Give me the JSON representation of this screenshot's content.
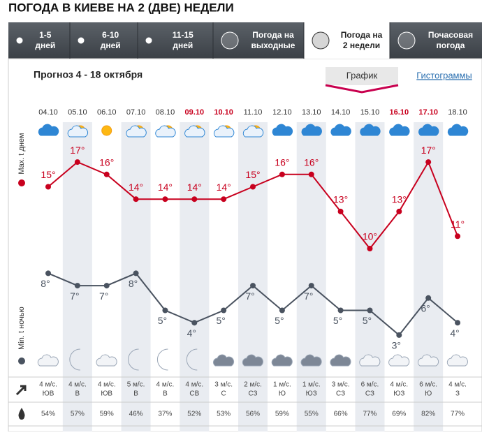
{
  "header": {
    "title": "ПОГОДА В КИЕВЕ НА 2 (ДВЕ) НЕДЕЛИ"
  },
  "tabs": [
    "1-5 дней",
    "6-10 дней",
    "11-15 дней",
    "Погода на выходные",
    "Погода на 2 недели",
    "Почасовая погода"
  ],
  "forecast": {
    "title": "Прогноз 4 - 18 октября",
    "views": [
      "График",
      "Гистограммы"
    ]
  },
  "chart": {
    "type": "line",
    "categories": [
      "04.10",
      "05.10",
      "06.10",
      "07.10",
      "08.10",
      "09.10",
      "10.10",
      "11.10",
      "12.10",
      "13.10",
      "14.10",
      "15.10",
      "16.10",
      "17.10",
      "18.10"
    ],
    "weekend_color": "#c8001e",
    "series": [
      {
        "name": "Max. t днем",
        "color": "#c8001e",
        "values": [
          15,
          17,
          16,
          14,
          14,
          14,
          14,
          15,
          16,
          16,
          13,
          10,
          13,
          17,
          11
        ],
        "value_labels": [
          "15°",
          "17°",
          "16°",
          "14°",
          "14°",
          "14°",
          "14°",
          "15°",
          "16°",
          "16°",
          "13°",
          "10°",
          "13°",
          "17°",
          "11°"
        ]
      },
      {
        "name": "Min. t ночью",
        "color": "#4a5360",
        "values": [
          8,
          7,
          7,
          8,
          5,
          4,
          5,
          7,
          5,
          7,
          5,
          5,
          3,
          6,
          4
        ],
        "value_labels": [
          "8°",
          "7°",
          "7°",
          "8°",
          "5°",
          "4°",
          "5°",
          "7°",
          "5°",
          "7°",
          "5°",
          "5°",
          "3°",
          "6°",
          "4°"
        ]
      }
    ]
  },
  "wind": {
    "speed": [
      "4 м/с.",
      "4 м/с.",
      "4 м/с.",
      "5 м/с.",
      "4 м/с.",
      "4 м/с.",
      "3 м/с.",
      "2 м/с.",
      "1 м/с.",
      "1 м/с.",
      "3 м/с.",
      "6 м/с.",
      "4 м/с.",
      "6 м/с.",
      "4 м/с."
    ],
    "direction": [
      "ЮВ",
      "В",
      "ЮВ",
      "В",
      "В",
      "СВ",
      "С",
      "СЗ",
      "Ю",
      "ЮЗ",
      "СЗ",
      "СЗ",
      "ЮЗ",
      "Ю",
      "З"
    ]
  },
  "humidity": [
    "54%",
    "57%",
    "59%",
    "46%",
    "37%",
    "52%",
    "53%",
    "56%",
    "59%",
    "55%",
    "66%",
    "77%",
    "69%",
    "82%",
    "77%"
  ]
}
